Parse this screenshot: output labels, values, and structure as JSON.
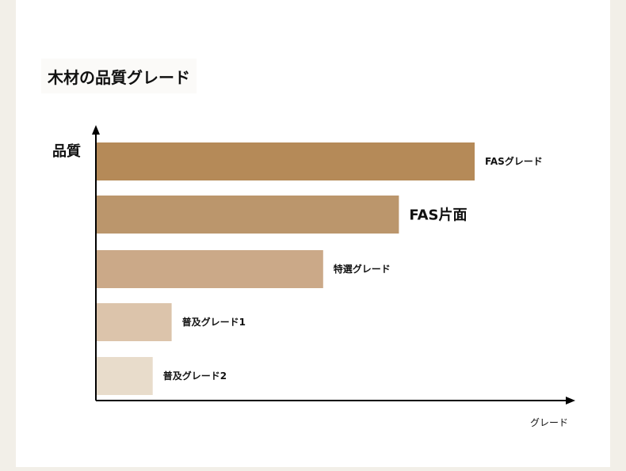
{
  "chart_data": {
    "type": "bar",
    "orientation": "horizontal",
    "title": "木材の品質グレード",
    "ylabel": "品質",
    "xlabel": "グレード",
    "categories": [
      "FASグレード",
      "FAS片面",
      "特選グレード",
      "普及グレード1",
      "普及グレード2"
    ],
    "values": [
      100,
      80,
      60,
      20,
      15
    ],
    "colors": [
      "#b58a58",
      "#bb966c",
      "#cba988",
      "#dcc4ab",
      "#e8dccb"
    ],
    "xlim": [
      0,
      100
    ],
    "grid": false,
    "legend": "none"
  }
}
